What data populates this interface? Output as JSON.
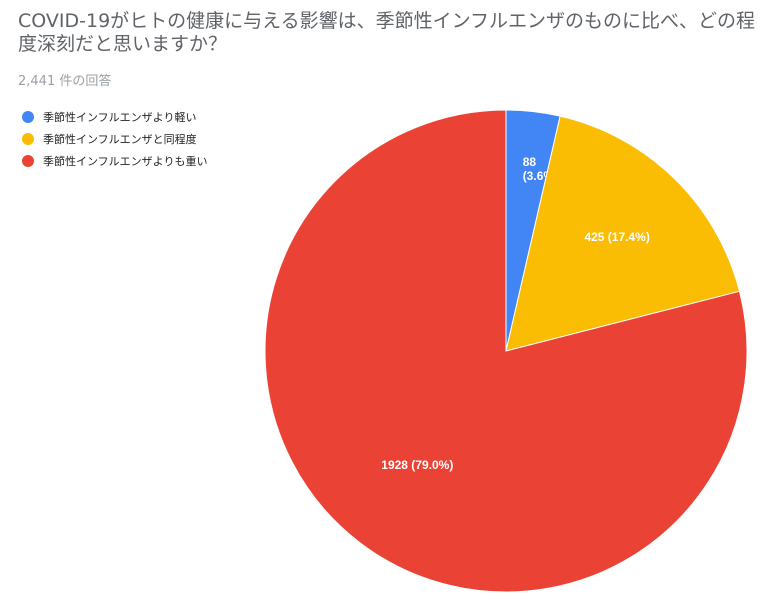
{
  "chart_data": {
    "type": "pie",
    "title": "COVID-19がヒトの健康に与える影響は、季節性インフルエンザのものに比べ、どの程度深刻だと思いますか？",
    "subtitle": "2,441 件の回答",
    "legend_position": "left",
    "categories": [
      "季節性インフルエンザより軽い",
      "季節性インフルエンザと同程度",
      "季節性インフルエンザよりも重い"
    ],
    "values": [
      88,
      425,
      1928
    ],
    "colors": [
      "#4285f4",
      "#fbbc04",
      "#ea4335"
    ],
    "data_labels": [
      [
        "88",
        "(3.6%)"
      ],
      [
        "425 (17.4%)"
      ],
      [
        "1928 (79.0%)"
      ]
    ]
  }
}
